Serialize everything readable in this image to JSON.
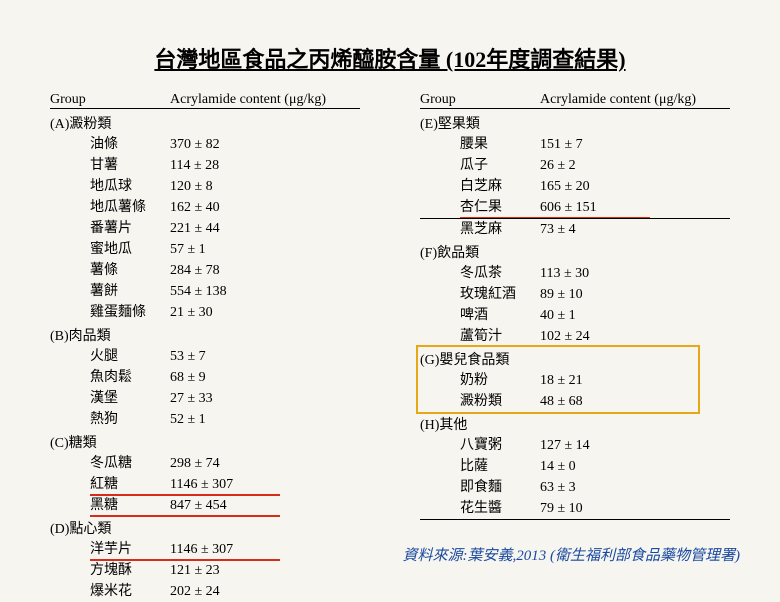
{
  "title": "台灣地區食品之丙烯醯胺含量 (102年度調查結果)",
  "header": {
    "c1": "Group",
    "c2": "Acrylamide content (μg/kg)"
  },
  "left_groups": [
    {
      "label": "(A)澱粉類",
      "rows": [
        {
          "name": "油條",
          "val": "370 ± 82"
        },
        {
          "name": "甘薯",
          "val": "114 ± 28"
        },
        {
          "name": "地瓜球",
          "val": "120 ± 8"
        },
        {
          "name": "地瓜薯條",
          "val": "162 ± 40"
        },
        {
          "name": "番薯片",
          "val": "221 ± 44"
        },
        {
          "name": "蜜地瓜",
          "val": "57 ± 1"
        },
        {
          "name": "薯條",
          "val": "284 ± 78"
        },
        {
          "name": "薯餅",
          "val": "554 ± 138"
        },
        {
          "name": "雞蛋麵條",
          "val": "21 ± 30"
        }
      ]
    },
    {
      "label": "(B)肉品類",
      "rows": [
        {
          "name": "火腿",
          "val": "53 ± 7"
        },
        {
          "name": "魚肉鬆",
          "val": "68 ± 9"
        },
        {
          "name": "漢堡",
          "val": "27 ± 33"
        },
        {
          "name": "熱狗",
          "val": "52 ± 1"
        }
      ]
    },
    {
      "label": "(C)糖類",
      "rows": [
        {
          "name": "冬瓜糖",
          "val": "298 ± 74"
        },
        {
          "name": "紅糖",
          "val": "1146 ± 307",
          "red": true
        },
        {
          "name": "黑糖",
          "val": "847 ± 454",
          "red": true
        }
      ]
    },
    {
      "label": "(D)點心類",
      "rows": [
        {
          "name": "洋芋片",
          "val": "1146 ± 307",
          "red": true
        },
        {
          "name": "方塊酥",
          "val": "121 ± 23"
        },
        {
          "name": "爆米花",
          "val": "202 ± 24"
        }
      ]
    }
  ],
  "right_groups": [
    {
      "label": "(E)堅果類",
      "rows": [
        {
          "name": "腰果",
          "val": "151 ± 7"
        },
        {
          "name": "瓜子",
          "val": "26 ± 2"
        },
        {
          "name": "白芝麻",
          "val": "165 ± 20"
        },
        {
          "name": "杏仁果",
          "val": "606 ± 151",
          "red": true
        },
        {
          "name": "黑芝麻",
          "val": "73 ± 4",
          "bt": true
        }
      ]
    },
    {
      "label": "(F)飲品類",
      "rows": [
        {
          "name": "冬瓜茶",
          "val": "113 ± 30"
        },
        {
          "name": "玫瑰紅酒",
          "val": "89 ± 10"
        },
        {
          "name": "啤酒",
          "val": "40 ± 1"
        },
        {
          "name": "蘆筍汁",
          "val": "102 ± 24"
        }
      ]
    },
    {
      "label": "(G)嬰兒食品類",
      "gold": true,
      "rows": [
        {
          "name": "奶粉",
          "val": "18 ± 21"
        },
        {
          "name": "澱粉類",
          "val": "48 ± 68"
        }
      ]
    },
    {
      "label": "(H)其他",
      "rows": [
        {
          "name": "八寶粥",
          "val": "127 ± 14"
        },
        {
          "name": "比薩",
          "val": "14 ± 0"
        },
        {
          "name": "即食麵",
          "val": "63 ± 3"
        },
        {
          "name": "花生醬",
          "val": "79 ± 10"
        }
      ]
    }
  ],
  "source": "資料來源:葉安義,2013 (衛生福利部食品藥物管理署)",
  "colors": {
    "background": "#f7f5f0",
    "red_underline": "#d62c1a",
    "gold_box": "#e6a817",
    "source_text": "#1a4aa0"
  }
}
